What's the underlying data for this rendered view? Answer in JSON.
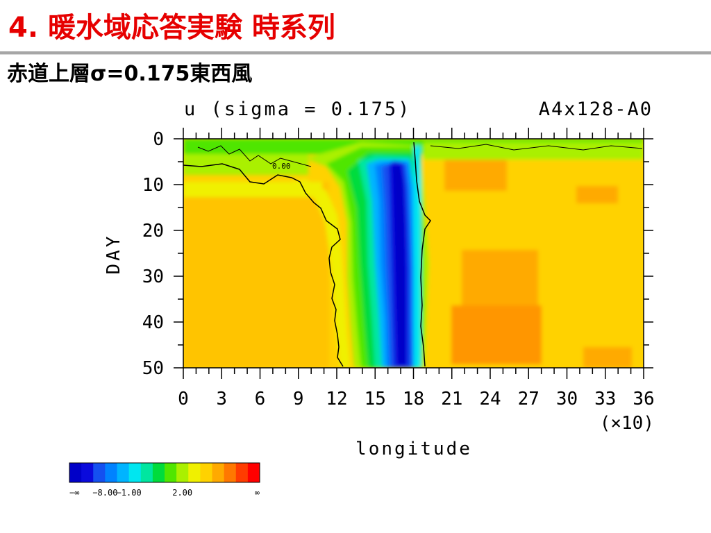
{
  "slide": {
    "title": "4. 暖水域応答実験 時系列",
    "subtitle": "赤道上層σ=0.175東西風"
  },
  "chart_data": {
    "type": "heatmap",
    "title": "u (sigma = 0.175)",
    "title_right": "A4x128-A0",
    "xlabel": "longitude",
    "x_multiplier": "(×10)",
    "ylabel": "DAY",
    "xlim": [
      0,
      36
    ],
    "ylim": [
      0,
      50
    ],
    "y_inverted": true,
    "x_ticks": [
      0,
      3,
      6,
      9,
      12,
      15,
      18,
      21,
      24,
      27,
      30,
      33,
      36
    ],
    "x_tick_labels": [
      "0",
      "3",
      "6",
      "9",
      "12",
      "15",
      "18",
      "21",
      "24",
      "27",
      "30",
      "33",
      "36"
    ],
    "y_ticks": [
      0,
      10,
      20,
      30,
      40,
      50
    ],
    "y_tick_labels": [
      "0",
      "10",
      "20",
      "30",
      "40",
      "50"
    ],
    "contour_label": "0.00",
    "colorbar": {
      "colors": [
        "#0000c8",
        "#0a0adc",
        "#1450f0",
        "#0082ff",
        "#00b4ff",
        "#00e6f0",
        "#00e6a0",
        "#00dc3c",
        "#50e600",
        "#aaf000",
        "#f0f000",
        "#ffd200",
        "#ffaa00",
        "#ff7800",
        "#ff3c00",
        "#ff0000"
      ],
      "labels": [
        "−∞",
        "−8.00",
        "−1.00",
        "2.00",
        "∞"
      ]
    }
  }
}
